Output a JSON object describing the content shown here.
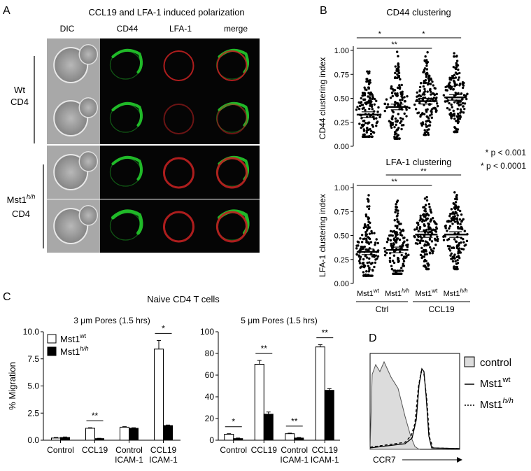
{
  "panel_letters": {
    "a": "A",
    "b": "B",
    "c": "C",
    "d": "D"
  },
  "panel_a": {
    "title": "CCL19 and LFA-1 induced polarization",
    "columns": [
      "DIC",
      "CD44",
      "LFA-1",
      "merge"
    ],
    "groups": [
      {
        "line1": "Wt",
        "line2": "CD4"
      },
      {
        "line1": "Mst1",
        "line1_sup": "h/h",
        "line2": "CD4"
      }
    ],
    "colors": {
      "cd44": "#22c22a",
      "lfa1": "#c02020",
      "dic": "#9a9a9a"
    }
  },
  "footnote": {
    "one": "* p < 0.001",
    "two": "* p < 0.0001"
  },
  "chart_data": [
    {
      "type": "scatter",
      "title": "CD44 clustering",
      "ylabel": "CD44 clustering index",
      "ylim": [
        0,
        1.0
      ],
      "yticks": [
        "0.00",
        "0.25",
        "0.50",
        "0.75",
        "1.00"
      ],
      "categories": [
        {
          "base": "Mst1",
          "sup": "wt"
        },
        {
          "base": "Mst1",
          "sup": "h/h"
        },
        {
          "base": "Mst1",
          "sup": "wt"
        },
        {
          "base": "Mst1",
          "sup": "h/h"
        }
      ],
      "groups": [
        "Ctrl",
        "CCL19"
      ],
      "means": [
        0.33,
        0.41,
        0.47,
        0.51
      ],
      "ranges": [
        [
          0.1,
          0.78
        ],
        [
          0.08,
          1.0
        ],
        [
          0.12,
          0.98
        ],
        [
          0.15,
          0.97
        ]
      ],
      "significance": [
        {
          "from": 0,
          "to": 1,
          "label": "*"
        },
        {
          "from": 1,
          "to": 3,
          "label": "*"
        },
        {
          "from": 0,
          "to": 2,
          "label": "**"
        }
      ]
    },
    {
      "type": "scatter",
      "title": "LFA-1 clustering",
      "ylabel": "LFA-1 clustering index",
      "ylim": [
        0,
        1.0
      ],
      "yticks": [
        "0.00",
        "0.25",
        "0.50",
        "0.75",
        "1.00"
      ],
      "categories": [
        {
          "base": "Mst1",
          "sup": "wt"
        },
        {
          "base": "Mst1",
          "sup": "h/h"
        },
        {
          "base": "Mst1",
          "sup": "wt"
        },
        {
          "base": "Mst1",
          "sup": "h/h"
        }
      ],
      "groups": [
        "Ctrl",
        "CCL19"
      ],
      "means": [
        0.33,
        0.35,
        0.51,
        0.51
      ],
      "ranges": [
        [
          0.08,
          0.92
        ],
        [
          0.1,
          0.97
        ],
        [
          0.15,
          0.9
        ],
        [
          0.15,
          0.95
        ]
      ],
      "significance": [
        {
          "from": 1,
          "to": 3,
          "label": "**"
        },
        {
          "from": 0,
          "to": 2,
          "label": "**"
        }
      ]
    },
    {
      "type": "bar",
      "suptitle": "Naive CD4 T cells",
      "title": "3 μm Pores (1.5 hrs)",
      "ylabel": "% Migration",
      "ylim": [
        0,
        10.0
      ],
      "yticks": [
        "0.0",
        "2.5",
        "5.0",
        "7.5",
        "10.0"
      ],
      "categories": [
        [
          "Control"
        ],
        [
          "CCL19"
        ],
        [
          "Control",
          "ICAM-1"
        ],
        [
          "CCL19",
          "ICAM-1"
        ]
      ],
      "series": [
        {
          "name": "Mst1",
          "sup": "wt",
          "values": [
            0.2,
            1.1,
            1.2,
            8.4
          ],
          "errors": [
            0.05,
            0.05,
            0.05,
            0.8
          ],
          "fill": "#ffffff"
        },
        {
          "name": "Mst1",
          "sup": "h/h",
          "values": [
            0.25,
            0.15,
            1.1,
            1.35
          ],
          "errors": [
            0.05,
            0.03,
            0.05,
            0.05
          ],
          "fill": "#000000"
        }
      ],
      "significance": [
        {
          "category": 1,
          "label": "**"
        },
        {
          "category": 3,
          "label": "*"
        }
      ]
    },
    {
      "type": "bar",
      "title": "5 μm Pores (1.5 hrs)",
      "ylim": [
        0,
        100
      ],
      "yticks": [
        "0",
        "20",
        "40",
        "60",
        "80",
        "100"
      ],
      "categories": [
        [
          "Control"
        ],
        [
          "CCL19"
        ],
        [
          "Control",
          "ICAM-1"
        ],
        [
          "CCL19",
          "ICAM-1"
        ]
      ],
      "series": [
        {
          "name": "Mst1",
          "sup": "wt",
          "values": [
            5.5,
            70,
            6,
            86
          ],
          "errors": [
            0.5,
            3.5,
            0.5,
            2
          ],
          "fill": "#ffffff"
        },
        {
          "name": "Mst1",
          "sup": "h/h",
          "values": [
            1.5,
            24,
            2,
            46
          ],
          "errors": [
            0.5,
            2,
            0.5,
            1.5
          ],
          "fill": "#000000"
        }
      ],
      "significance": [
        {
          "category": 0,
          "label": "*"
        },
        {
          "category": 1,
          "label": "**"
        },
        {
          "category": 2,
          "label": "**"
        },
        {
          "category": 3,
          "label": "**"
        }
      ]
    },
    {
      "type": "histogram",
      "xlabel": "CCR7",
      "legend": [
        {
          "label": "control",
          "style": "filled"
        },
        {
          "label": "Mst1",
          "sup": "wt",
          "style": "solid"
        },
        {
          "label": "Mst1",
          "sup": "h/h",
          "style": "dotted"
        }
      ]
    }
  ]
}
